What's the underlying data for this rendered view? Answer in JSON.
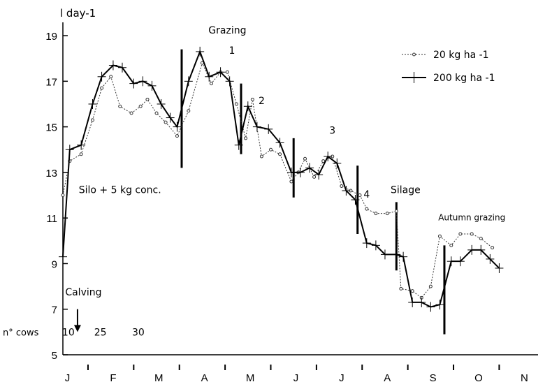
{
  "chart_data": {
    "type": "line",
    "ylabel": "l day-1",
    "ylim": [
      5,
      19.4
    ],
    "yticks": [
      5,
      7,
      9,
      11,
      13,
      15,
      17,
      19
    ],
    "x_range": [
      0,
      10.4
    ],
    "month_labels": [
      {
        "x": 0.1,
        "text": "J"
      },
      {
        "x": 1.1,
        "text": "F"
      },
      {
        "x": 2.1,
        "text": "M"
      },
      {
        "x": 3.1,
        "text": "A"
      },
      {
        "x": 4.1,
        "text": "M"
      },
      {
        "x": 5.1,
        "text": "J"
      },
      {
        "x": 6.1,
        "text": "J"
      },
      {
        "x": 7.1,
        "text": "A"
      },
      {
        "x": 8.1,
        "text": "S"
      },
      {
        "x": 9.1,
        "text": "O"
      },
      {
        "x": 10.1,
        "text": "N"
      }
    ],
    "month_ticks": [
      0.55,
      1.55,
      2.55,
      3.55,
      4.55,
      5.55,
      6.55,
      7.55,
      8.55,
      9.55
    ],
    "legend": [
      {
        "name": "20 kg ha -1",
        "style": "thin dotted with small circles"
      },
      {
        "name": "200 kg ha -1",
        "style": "thick with crosses"
      }
    ],
    "series": [
      {
        "name": "20 kg ha -1",
        "color": "#333333",
        "points": [
          [
            0.0,
            12.0
          ],
          [
            0.15,
            13.5
          ],
          [
            0.4,
            13.8
          ],
          [
            0.65,
            15.3
          ],
          [
            0.85,
            16.7
          ],
          [
            1.05,
            17.2
          ],
          [
            1.25,
            15.9
          ],
          [
            1.5,
            15.6
          ],
          [
            1.7,
            15.9
          ],
          [
            1.85,
            16.2
          ],
          [
            2.05,
            15.6
          ],
          [
            2.25,
            15.2
          ],
          [
            2.5,
            14.6
          ],
          [
            2.75,
            15.7
          ],
          [
            3.05,
            17.8
          ],
          [
            3.25,
            16.9
          ],
          [
            3.45,
            17.4
          ],
          [
            3.6,
            17.4
          ],
          [
            3.8,
            16.0
          ],
          [
            4.0,
            14.5
          ],
          [
            4.15,
            16.2
          ],
          [
            4.35,
            13.7
          ],
          [
            4.55,
            14.0
          ],
          [
            4.75,
            13.8
          ],
          [
            5.0,
            12.6
          ],
          [
            5.15,
            13.0
          ],
          [
            5.3,
            13.6
          ],
          [
            5.5,
            12.8
          ],
          [
            5.7,
            13.5
          ],
          [
            5.9,
            13.7
          ],
          [
            6.1,
            12.4
          ],
          [
            6.3,
            12.2
          ],
          [
            6.5,
            12.0
          ],
          [
            6.65,
            11.4
          ],
          [
            6.85,
            11.2
          ],
          [
            7.1,
            11.2
          ],
          [
            7.3,
            11.3
          ],
          [
            7.4,
            7.9
          ],
          [
            7.65,
            7.8
          ],
          [
            7.85,
            7.5
          ],
          [
            8.05,
            8.0
          ],
          [
            8.25,
            10.2
          ],
          [
            8.5,
            9.8
          ],
          [
            8.7,
            10.3
          ],
          [
            8.95,
            10.3
          ],
          [
            9.15,
            10.1
          ],
          [
            9.4,
            9.7
          ]
        ]
      },
      {
        "name": "200 kg ha -1",
        "color": "#000000",
        "points": [
          [
            0.0,
            9.3
          ],
          [
            0.15,
            14.0
          ],
          [
            0.4,
            14.2
          ],
          [
            0.65,
            16.0
          ],
          [
            0.85,
            17.2
          ],
          [
            1.1,
            17.7
          ],
          [
            1.3,
            17.6
          ],
          [
            1.55,
            16.9
          ],
          [
            1.75,
            17.0
          ],
          [
            1.95,
            16.8
          ],
          [
            2.15,
            16.0
          ],
          [
            2.35,
            15.4
          ],
          [
            2.5,
            15.0
          ],
          [
            2.75,
            17.0
          ],
          [
            3.0,
            18.3
          ],
          [
            3.2,
            17.2
          ],
          [
            3.45,
            17.4
          ],
          [
            3.65,
            17.0
          ],
          [
            3.85,
            14.2
          ],
          [
            4.05,
            15.9
          ],
          [
            4.25,
            15.0
          ],
          [
            4.5,
            14.9
          ],
          [
            4.75,
            14.3
          ],
          [
            5.0,
            13.0
          ],
          [
            5.2,
            13.0
          ],
          [
            5.4,
            13.2
          ],
          [
            5.6,
            12.9
          ],
          [
            5.8,
            13.7
          ],
          [
            6.0,
            13.4
          ],
          [
            6.2,
            12.2
          ],
          [
            6.4,
            11.8
          ],
          [
            6.65,
            9.9
          ],
          [
            6.85,
            9.8
          ],
          [
            7.05,
            9.4
          ],
          [
            7.3,
            9.4
          ],
          [
            7.45,
            9.3
          ],
          [
            7.65,
            7.3
          ],
          [
            7.85,
            7.3
          ],
          [
            8.05,
            7.1
          ],
          [
            8.25,
            7.2
          ],
          [
            8.5,
            9.1
          ],
          [
            8.7,
            9.1
          ],
          [
            8.95,
            9.6
          ],
          [
            9.15,
            9.6
          ],
          [
            9.35,
            9.2
          ],
          [
            9.55,
            8.8
          ]
        ]
      }
    ],
    "phase_markers": [
      {
        "x": 2.6,
        "y_from": 13.2,
        "y_to": 18.4
      },
      {
        "x": 3.9,
        "y_from": 13.8,
        "y_to": 16.9
      },
      {
        "x": 5.05,
        "y_from": 11.9,
        "y_to": 14.5
      },
      {
        "x": 6.45,
        "y_from": 10.3,
        "y_to": 13.3
      },
      {
        "x": 7.3,
        "y_from": 8.7,
        "y_to": 11.7
      },
      {
        "x": 8.35,
        "y_from": 5.9,
        "y_to": 9.8
      }
    ],
    "annotations": [
      {
        "text": "Grazing",
        "x": 3.6,
        "y": 19.1,
        "size": 14
      },
      {
        "text": "1",
        "x": 3.7,
        "y": 18.2,
        "size": 14
      },
      {
        "text": "2",
        "x": 4.35,
        "y": 16.0,
        "size": 14
      },
      {
        "text": "3",
        "x": 5.9,
        "y": 14.7,
        "size": 14
      },
      {
        "text": "4",
        "x": 6.65,
        "y": 11.9,
        "size": 14
      },
      {
        "text": "Silage",
        "x": 7.5,
        "y": 12.1,
        "size": 14
      },
      {
        "text": "Autumn grazing",
        "x": 8.95,
        "y": 10.9,
        "size": 12
      },
      {
        "text": "Silo + 5 kg conc.",
        "x": 1.25,
        "y": 12.1,
        "size": 14
      },
      {
        "text": "Calving",
        "x": 0.45,
        "y": 7.6,
        "size": 14
      }
    ],
    "calving_arrow": {
      "x": 0.32,
      "y_from": 7.0,
      "y_to": 6.0
    },
    "cow_counts": {
      "label": "n° cows",
      "values": [
        {
          "x": 0.12,
          "text": "10"
        },
        {
          "x": 0.82,
          "text": "25"
        },
        {
          "x": 1.65,
          "text": "30"
        }
      ],
      "y": 5.85
    }
  }
}
